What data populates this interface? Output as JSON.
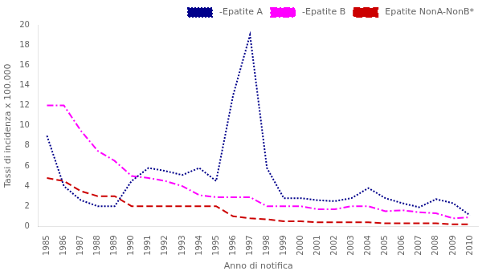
{
  "chart_data": {
    "type": "line",
    "x": [
      1985,
      1986,
      1987,
      1988,
      1989,
      1990,
      1991,
      1992,
      1993,
      1994,
      1995,
      1996,
      1997,
      1998,
      1999,
      2000,
      2001,
      2002,
      2003,
      2004,
      2005,
      2006,
      2007,
      2008,
      2009,
      2010
    ],
    "series": [
      {
        "name": " -Epatite A",
        "color": "#00008B",
        "line_style": "dotted",
        "values": [
          9.0,
          4.0,
          2.6,
          2.0,
          2.0,
          4.5,
          5.8,
          5.5,
          5.1,
          5.8,
          4.5,
          13.0,
          19.0,
          5.8,
          2.8,
          2.8,
          2.6,
          2.5,
          2.8,
          3.8,
          2.8,
          2.3,
          1.9,
          2.7,
          2.3,
          1.1
        ]
      },
      {
        "name": " -Epatite B",
        "color": "#FF00FF",
        "line_style": "dashdot",
        "values": [
          12.0,
          12.0,
          9.5,
          7.5,
          6.5,
          5.0,
          4.8,
          4.5,
          4.0,
          3.1,
          2.9,
          2.9,
          2.9,
          2.0,
          2.0,
          2.0,
          1.7,
          1.7,
          2.0,
          2.0,
          1.5,
          1.6,
          1.4,
          1.3,
          0.8,
          0.9
        ]
      },
      {
        "name": " Epatite NonA-NonB*",
        "color": "#CC0000",
        "line_style": "dashed",
        "values": [
          4.8,
          4.5,
          3.5,
          3.0,
          3.0,
          2.0,
          2.0,
          2.0,
          2.0,
          2.0,
          2.0,
          1.0,
          0.8,
          0.7,
          0.5,
          0.5,
          0.4,
          0.4,
          0.4,
          0.4,
          0.3,
          0.3,
          0.3,
          0.3,
          0.2,
          0.2
        ]
      }
    ],
    "xlabel": "Anno di notifica",
    "ylabel": "Tassi di incidenza x 100.000",
    "xlim": [
      1984.5,
      2010.5
    ],
    "xticks": [
      1985,
      1986,
      1987,
      1988,
      1989,
      1990,
      1991,
      1992,
      1993,
      1994,
      1995,
      1996,
      1997,
      1998,
      1999,
      2000,
      2001,
      2002,
      2003,
      2004,
      2005,
      2006,
      2007,
      2008,
      2009,
      2010
    ],
    "ylim": [
      0,
      20
    ],
    "yticks": [
      0,
      2,
      4,
      6,
      8,
      10,
      12,
      14,
      16,
      18,
      20
    ],
    "grid": false,
    "legend": "upper right"
  }
}
